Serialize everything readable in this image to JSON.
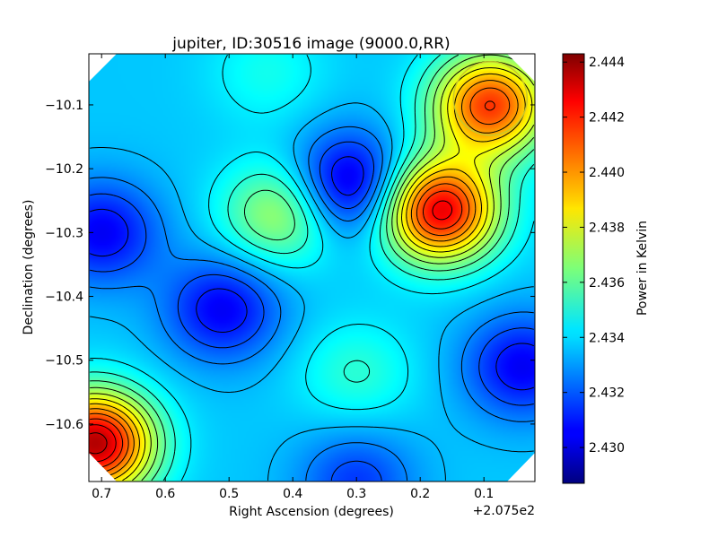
{
  "chart_data": {
    "type": "heatmap",
    "title": "jupiter, ID:30516 image (9000.0,RR)",
    "xlabel": "Right Ascension (degrees)",
    "ylabel": "Declination (degrees)",
    "x_offset_label": "+2.075e2",
    "colorbar_label": "Power in Kelvin",
    "colormap": "jet",
    "x_ticks": [
      "0.7",
      "0.6",
      "0.5",
      "0.4",
      "0.3",
      "0.2",
      "0.1"
    ],
    "y_ticks": [
      "−10.1",
      "−10.2",
      "−10.3",
      "−10.4",
      "−10.5",
      "−10.6"
    ],
    "colorbar_ticks": [
      "2.430",
      "2.432",
      "2.434",
      "2.436",
      "2.438",
      "2.440",
      "2.442",
      "2.444"
    ],
    "xlim": [
      0.72,
      0.02
    ],
    "ylim": [
      -10.69,
      -10.02
    ],
    "clim": [
      2.4287,
      2.4443
    ],
    "contours": true,
    "grid": false,
    "features": [
      {
        "kind": "peak",
        "x": 0.17,
        "y": -10.265,
        "value": 2.4428
      },
      {
        "kind": "high",
        "x": 0.09,
        "y": -10.1,
        "value": 2.4415
      },
      {
        "kind": "low",
        "x": 0.31,
        "y": -10.225,
        "value": 2.4295
      },
      {
        "kind": "low",
        "x": 0.51,
        "y": -10.42,
        "value": 2.4305
      },
      {
        "kind": "low",
        "x": 0.7,
        "y": -10.3,
        "value": 2.4305
      },
      {
        "kind": "low",
        "x": 0.04,
        "y": -10.51,
        "value": 2.4305
      },
      {
        "kind": "low",
        "x": 0.3,
        "y": -10.69,
        "value": 2.4315
      },
      {
        "kind": "high",
        "x": 0.71,
        "y": -10.63,
        "value": 2.4435
      },
      {
        "kind": "ridge",
        "x": 0.42,
        "y": -10.27,
        "value": 2.4372
      },
      {
        "kind": "bump",
        "x": 0.3,
        "y": -10.52,
        "value": 2.4352
      },
      {
        "kind": "ridge",
        "x": 0.44,
        "y": -10.05,
        "value": 2.4348
      }
    ]
  },
  "beam_circle": {
    "x": 0.09,
    "y": -10.09,
    "color": "#c8c82a"
  }
}
